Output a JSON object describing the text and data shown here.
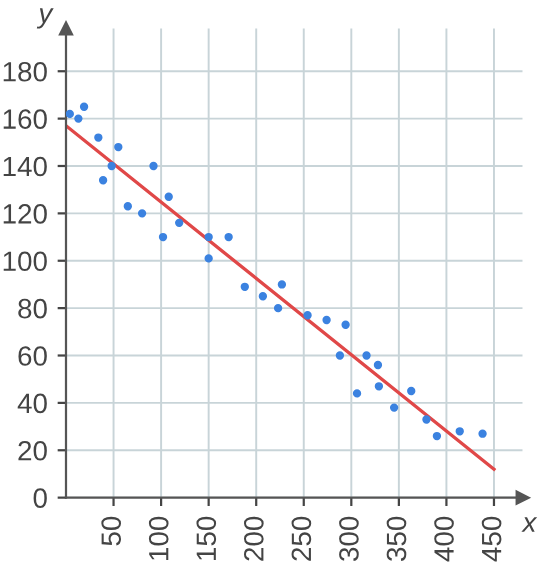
{
  "chart_data": {
    "type": "scatter",
    "xlabel": "x",
    "ylabel": "y",
    "xlim": [
      0,
      480
    ],
    "ylim": [
      0,
      198
    ],
    "xticks": [
      50,
      100,
      150,
      200,
      250,
      300,
      350,
      400,
      450
    ],
    "yticks": [
      0,
      20,
      40,
      60,
      80,
      100,
      120,
      140,
      160,
      180
    ],
    "grid": true,
    "series": [
      {
        "color": "#3b82e0",
        "marker": "circle",
        "x": [
          4,
          13,
          19,
          34,
          39,
          48,
          55,
          65,
          80,
          92,
          102,
          108,
          119,
          150,
          150,
          171,
          188,
          207,
          227,
          223,
          254,
          274,
          294,
          288,
          316,
          328,
          306,
          329,
          363,
          345,
          379,
          390,
          414,
          438
        ],
        "values": [
          162,
          160,
          165,
          152,
          134,
          140,
          148,
          123,
          120,
          140,
          110,
          127,
          116,
          110,
          101,
          110,
          89,
          85,
          90,
          80,
          77,
          75,
          73,
          60,
          60,
          56,
          44,
          47,
          45,
          38,
          33,
          26,
          28,
          27
        ]
      },
      {
        "type": "line",
        "color": "#e04848",
        "x": [
          0,
          450
        ],
        "values": [
          157,
          12
        ]
      }
    ]
  }
}
